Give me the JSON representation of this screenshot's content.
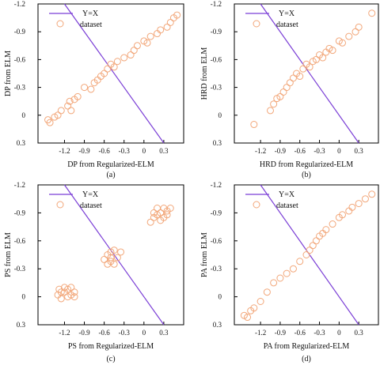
{
  "style": {
    "line_color": "#7b3fd6",
    "marker_color": "#f2a77a",
    "axis_color": "#000000"
  },
  "chart_data": [
    {
      "type": "scatter",
      "panel_label": "(a)",
      "xlabel": "DP from Regularized-ELM",
      "ylabel": "DP from ELM",
      "xlim": [
        -1.6,
        0.6
      ],
      "ylim": [
        0.3,
        -1.2
      ],
      "xticks": [
        "-1.2",
        "-0.9",
        "-0.6",
        "-0.3",
        "0",
        "0.3"
      ],
      "yticks": [
        "-1.2",
        "-0.9",
        "-0.6",
        "-0.3",
        "0",
        "0.3"
      ],
      "legend": {
        "line": "Y=X",
        "markers": "dataset",
        "position": "top-left"
      },
      "points": [
        [
          -1.45,
          0.05
        ],
        [
          -1.42,
          0.08
        ],
        [
          -1.35,
          0.02
        ],
        [
          -1.3,
          0.0
        ],
        [
          -1.25,
          -0.05
        ],
        [
          -1.15,
          -0.1
        ],
        [
          -1.12,
          -0.15
        ],
        [
          -1.05,
          -0.17
        ],
        [
          -1.1,
          -0.05
        ],
        [
          -1.0,
          -0.2
        ],
        [
          -0.9,
          -0.3
        ],
        [
          -0.8,
          -0.28
        ],
        [
          -0.75,
          -0.35
        ],
        [
          -0.7,
          -0.38
        ],
        [
          -0.65,
          -0.42
        ],
        [
          -0.6,
          -0.45
        ],
        [
          -0.55,
          -0.5
        ],
        [
          -0.5,
          -0.55
        ],
        [
          -0.45,
          -0.52
        ],
        [
          -0.4,
          -0.58
        ],
        [
          -0.3,
          -0.62
        ],
        [
          -0.2,
          -0.65
        ],
        [
          -0.15,
          -0.7
        ],
        [
          -0.1,
          -0.75
        ],
        [
          0.0,
          -0.8
        ],
        [
          0.05,
          -0.78
        ],
        [
          0.1,
          -0.85
        ],
        [
          0.2,
          -0.88
        ],
        [
          0.25,
          -0.92
        ],
        [
          0.35,
          -0.95
        ],
        [
          0.4,
          -1.0
        ],
        [
          0.45,
          -1.05
        ],
        [
          0.5,
          -1.08
        ]
      ]
    },
    {
      "type": "scatter",
      "panel_label": "(b)",
      "xlabel": "HRD from Regularized-ELM",
      "ylabel": "HRD from ELM",
      "xlim": [
        -1.6,
        0.6
      ],
      "ylim": [
        0.3,
        -1.2
      ],
      "xticks": [
        "-1.2",
        "-0.9",
        "-0.6",
        "-0.3",
        "0",
        "0.3"
      ],
      "yticks": [
        "-1.2",
        "-0.9",
        "-0.6",
        "-0.3",
        "0",
        "0.3"
      ],
      "legend": {
        "line": "Y=X",
        "markers": "dataset",
        "position": "top-left"
      },
      "points": [
        [
          -1.3,
          0.1
        ],
        [
          -1.05,
          -0.05
        ],
        [
          -1.0,
          -0.12
        ],
        [
          -0.95,
          -0.18
        ],
        [
          -0.9,
          -0.2
        ],
        [
          -0.85,
          -0.25
        ],
        [
          -0.8,
          -0.3
        ],
        [
          -0.75,
          -0.35
        ],
        [
          -0.7,
          -0.4
        ],
        [
          -0.65,
          -0.45
        ],
        [
          -0.6,
          -0.42
        ],
        [
          -0.55,
          -0.5
        ],
        [
          -0.5,
          -0.55
        ],
        [
          -0.45,
          -0.52
        ],
        [
          -0.4,
          -0.58
        ],
        [
          -0.35,
          -0.6
        ],
        [
          -0.3,
          -0.65
        ],
        [
          -0.25,
          -0.62
        ],
        [
          -0.2,
          -0.68
        ],
        [
          -0.15,
          -0.72
        ],
        [
          -0.1,
          -0.7
        ],
        [
          0.0,
          -0.8
        ],
        [
          0.05,
          -0.78
        ],
        [
          0.15,
          -0.85
        ],
        [
          0.25,
          -0.9
        ],
        [
          0.3,
          -0.95
        ],
        [
          0.5,
          -1.1
        ]
      ]
    },
    {
      "type": "scatter",
      "panel_label": "(c)",
      "xlabel": "PS from Regularized-ELM",
      "ylabel": "PS from ELM",
      "xlim": [
        -1.6,
        0.6
      ],
      "ylim": [
        0.3,
        -1.2
      ],
      "xticks": [
        "-1.2",
        "-0.9",
        "-0.6",
        "-0.3",
        "0",
        "0.3"
      ],
      "yticks": [
        "-1.2",
        "-0.9",
        "-0.6",
        "-0.3",
        "0",
        "0.3"
      ],
      "legend": {
        "line": "Y=X",
        "markers": "dataset",
        "position": "top-left"
      },
      "points": [
        [
          -1.3,
          -0.02
        ],
        [
          -1.25,
          -0.05
        ],
        [
          -1.2,
          -0.1
        ],
        [
          -1.15,
          -0.08
        ],
        [
          -1.1,
          -0.02
        ],
        [
          -1.05,
          -0.05
        ],
        [
          -1.25,
          0.02
        ],
        [
          -1.15,
          0.0
        ],
        [
          -1.2,
          -0.05
        ],
        [
          -1.1,
          -0.1
        ],
        [
          -1.05,
          0.0
        ],
        [
          -1.28,
          -0.08
        ],
        [
          -0.6,
          -0.4
        ],
        [
          -0.55,
          -0.45
        ],
        [
          -0.5,
          -0.38
        ],
        [
          -0.45,
          -0.5
        ],
        [
          -0.4,
          -0.42
        ],
        [
          -0.5,
          -0.48
        ],
        [
          -0.55,
          -0.35
        ],
        [
          -0.45,
          -0.35
        ],
        [
          -0.35,
          -0.48
        ],
        [
          -0.5,
          -0.42
        ],
        [
          0.1,
          -0.8
        ],
        [
          0.15,
          -0.85
        ],
        [
          0.2,
          -0.88
        ],
        [
          0.25,
          -0.9
        ],
        [
          0.3,
          -0.85
        ],
        [
          0.35,
          -0.92
        ],
        [
          0.2,
          -0.95
        ],
        [
          0.3,
          -0.95
        ],
        [
          0.15,
          -0.9
        ],
        [
          0.25,
          -0.82
        ],
        [
          0.4,
          -0.95
        ],
        [
          0.35,
          -0.88
        ]
      ]
    },
    {
      "type": "scatter",
      "panel_label": "(d)",
      "xlabel": "PA from Regularized-ELM",
      "ylabel": "PA from ELM",
      "xlim": [
        -1.6,
        0.6
      ],
      "ylim": [
        0.3,
        -1.2
      ],
      "xticks": [
        "-1.2",
        "-0.9",
        "-0.6",
        "-0.3",
        "0",
        "0.3"
      ],
      "yticks": [
        "-1.2",
        "-0.9",
        "-0.6",
        "-0.3",
        "0",
        "0.3"
      ],
      "legend": {
        "line": "Y=X",
        "markers": "dataset",
        "position": "top-left"
      },
      "points": [
        [
          -1.45,
          0.2
        ],
        [
          -1.4,
          0.22
        ],
        [
          -1.35,
          0.15
        ],
        [
          -1.3,
          0.12
        ],
        [
          -1.2,
          0.05
        ],
        [
          -1.1,
          -0.05
        ],
        [
          -1.0,
          -0.15
        ],
        [
          -0.9,
          -0.2
        ],
        [
          -0.8,
          -0.25
        ],
        [
          -0.7,
          -0.3
        ],
        [
          -0.6,
          -0.38
        ],
        [
          -0.5,
          -0.45
        ],
        [
          -0.45,
          -0.5
        ],
        [
          -0.4,
          -0.55
        ],
        [
          -0.35,
          -0.6
        ],
        [
          -0.3,
          -0.65
        ],
        [
          -0.25,
          -0.68
        ],
        [
          -0.2,
          -0.72
        ],
        [
          -0.1,
          -0.78
        ],
        [
          0.0,
          -0.85
        ],
        [
          0.05,
          -0.88
        ],
        [
          0.15,
          -0.92
        ],
        [
          0.2,
          -0.96
        ],
        [
          0.3,
          -1.0
        ],
        [
          0.4,
          -1.05
        ],
        [
          0.5,
          -1.1
        ]
      ]
    }
  ]
}
